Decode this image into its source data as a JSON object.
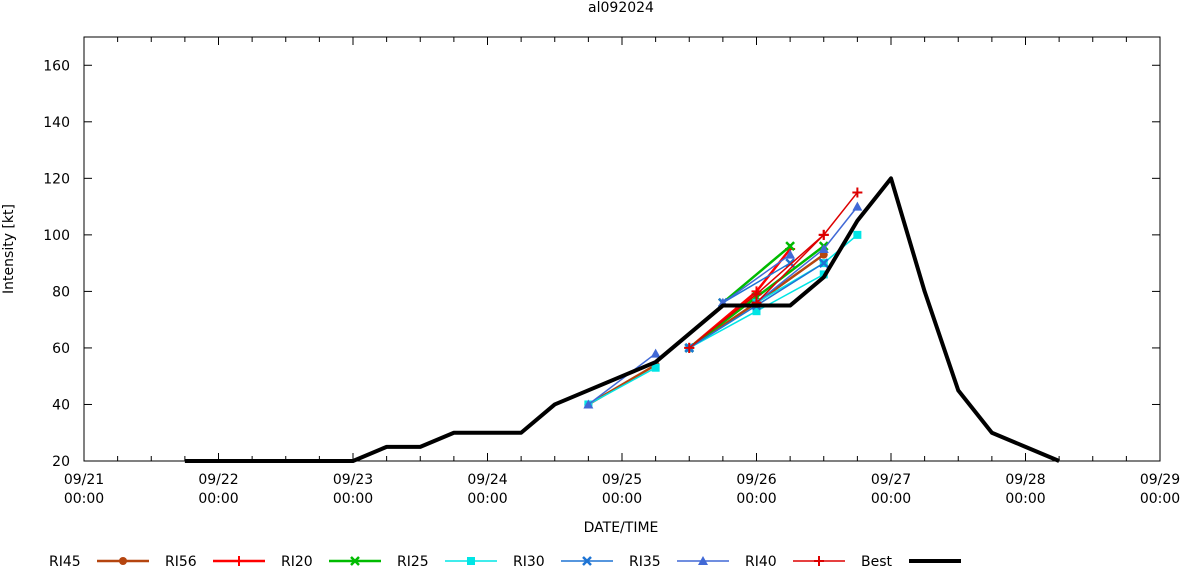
{
  "chart_data": {
    "type": "line",
    "title": "al092024",
    "xlabel": "DATE/TIME",
    "ylabel": "Intensity [kt]",
    "xlim_hours": [
      0,
      192
    ],
    "ylim": [
      20,
      170
    ],
    "x_ticks": [
      {
        "hour": 0,
        "date": "09/21",
        "time": "00:00"
      },
      {
        "hour": 24,
        "date": "09/22",
        "time": "00:00"
      },
      {
        "hour": 48,
        "date": "09/23",
        "time": "00:00"
      },
      {
        "hour": 72,
        "date": "09/24",
        "time": "00:00"
      },
      {
        "hour": 96,
        "date": "09/25",
        "time": "00:00"
      },
      {
        "hour": 120,
        "date": "09/26",
        "time": "00:00"
      },
      {
        "hour": 144,
        "date": "09/27",
        "time": "00:00"
      },
      {
        "hour": 168,
        "date": "09/28",
        "time": "00:00"
      },
      {
        "hour": 192,
        "date": "09/29",
        "time": "00:00"
      }
    ],
    "y_ticks": [
      20,
      40,
      60,
      80,
      100,
      120,
      140,
      160
    ],
    "legend_position": "bottom",
    "series": [
      {
        "name": "RI45",
        "color": "#b5450f",
        "marker": "circle",
        "line": "thick",
        "segments": [
          [
            [
              90,
              40
            ],
            [
              102,
              54
            ]
          ],
          [
            [
              108,
              60
            ],
            [
              120,
              76
            ],
            [
              132,
              93
            ]
          ]
        ]
      },
      {
        "name": "RI56",
        "color": "#ff0000",
        "marker": "plus",
        "line": "thick",
        "segments": [
          [
            [
              108,
              60
            ],
            [
              120,
              80
            ],
            [
              126,
              95
            ]
          ]
        ]
      },
      {
        "name": "RI20",
        "color": "#00bb00",
        "marker": "x",
        "line": "thick",
        "segments": [
          [
            [
              108,
              60
            ],
            [
              120,
              78
            ],
            [
              132,
              96
            ]
          ],
          [
            [
              114,
              76
            ],
            [
              126,
              96
            ]
          ]
        ]
      },
      {
        "name": "RI25",
        "color": "#00e5e5",
        "marker": "square",
        "line": "thin",
        "segments": [
          [
            [
              90,
              40
            ],
            [
              102,
              53
            ]
          ],
          [
            [
              108,
              60
            ],
            [
              120,
              73
            ],
            [
              132,
              86
            ]
          ],
          [
            [
              120,
              76
            ],
            [
              132,
              90
            ],
            [
              138,
              100
            ]
          ]
        ]
      },
      {
        "name": "RI30",
        "color": "#1e74d4",
        "marker": "x",
        "line": "thin",
        "segments": [
          [
            [
              108,
              60
            ],
            [
              120,
              75
            ],
            [
              132,
              90
            ]
          ],
          [
            [
              114,
              76
            ],
            [
              126,
              90
            ]
          ]
        ]
      },
      {
        "name": "RI35",
        "color": "#4169d6",
        "marker": "triangle",
        "line": "thin",
        "segments": [
          [
            [
              90,
              40
            ],
            [
              102,
              58
            ]
          ],
          [
            [
              114,
              76
            ],
            [
              126,
              93
            ]
          ],
          [
            [
              120,
              76
            ],
            [
              132,
              95
            ],
            [
              138,
              110
            ]
          ]
        ]
      },
      {
        "name": "RI40",
        "color": "#dd0000",
        "marker": "plus",
        "line": "thin",
        "segments": [
          [
            [
              108,
              60
            ],
            [
              120,
              79
            ],
            [
              132,
              100
            ]
          ],
          [
            [
              120,
              76
            ],
            [
              132,
              100
            ],
            [
              138,
              115
            ]
          ]
        ]
      },
      {
        "name": "Best",
        "color": "#000000",
        "marker": "none",
        "line": "best",
        "points": [
          [
            18,
            20
          ],
          [
            24,
            20
          ],
          [
            30,
            20
          ],
          [
            36,
            20
          ],
          [
            42,
            20
          ],
          [
            48,
            20
          ],
          [
            54,
            25
          ],
          [
            60,
            25
          ],
          [
            66,
            30
          ],
          [
            72,
            30
          ],
          [
            78,
            30
          ],
          [
            84,
            40
          ],
          [
            90,
            45
          ],
          [
            96,
            50
          ],
          [
            102,
            55
          ],
          [
            108,
            65
          ],
          [
            114,
            75
          ],
          [
            120,
            75
          ],
          [
            126,
            75
          ],
          [
            132,
            85
          ],
          [
            138,
            105
          ],
          [
            144,
            120
          ],
          [
            150,
            80
          ],
          [
            156,
            45
          ],
          [
            162,
            30
          ],
          [
            168,
            25
          ],
          [
            174,
            20
          ]
        ]
      }
    ]
  }
}
